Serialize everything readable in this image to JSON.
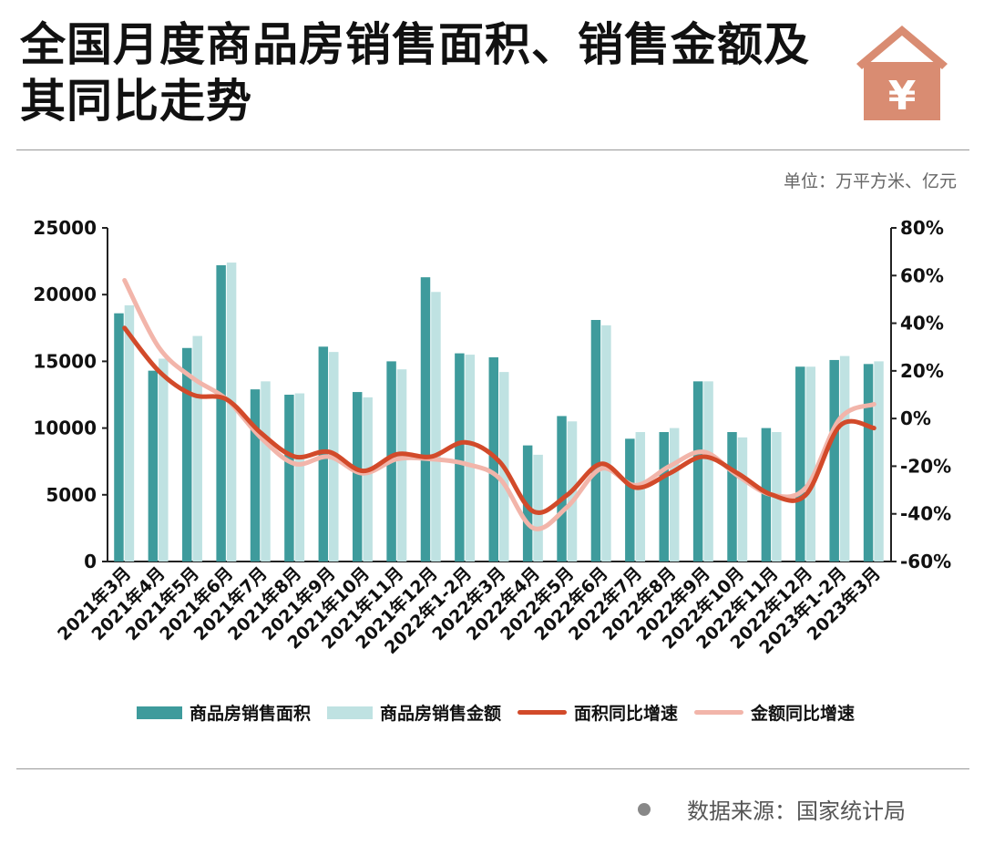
{
  "title": "全国月度商品房销售面积、销售金额及其同比走势",
  "unit_label": "单位：万平方米、亿元",
  "source_label": "数据来源：国家统计局",
  "house_icon_symbol": "¥",
  "colors": {
    "area_bar": "#3e9b9c",
    "amount_bar": "#bfe2e2",
    "area_yoy": "#d24a2a",
    "amount_yoy": "#f2b5aa",
    "house": "#d98c72"
  },
  "chart_data": {
    "type": "bar",
    "categories": [
      "2021年3月",
      "2021年4月",
      "2021年5月",
      "2021年6月",
      "2021年7月",
      "2021年8月",
      "2021年9月",
      "2021年10月",
      "2021年11月",
      "2021年12月",
      "2022年1-2月",
      "2022年3月",
      "2022年4月",
      "2022年5月",
      "2022年6月",
      "2022年7月",
      "2022年8月",
      "2022年9月",
      "2022年10月",
      "2022年11月",
      "2022年12月",
      "2023年1-2月",
      "2023年3月"
    ],
    "y_left": {
      "min": 0,
      "max": 25000,
      "ticks": [
        "0",
        "5000",
        "10000",
        "15000",
        "20000",
        "25000"
      ]
    },
    "y_right": {
      "min": -60,
      "max": 80,
      "ticks": [
        "-60%",
        "-40%",
        "-20%",
        "0%",
        "20%",
        "40%",
        "60%",
        "80%"
      ]
    },
    "series": [
      {
        "name": "商品房销售面积",
        "kind": "bar",
        "axis": "left",
        "values": [
          18600,
          14300,
          16000,
          22200,
          12900,
          12500,
          16100,
          12700,
          15000,
          21300,
          15600,
          15300,
          8700,
          10900,
          18100,
          9200,
          9700,
          13500,
          9700,
          10000,
          14600,
          15100,
          14800
        ]
      },
      {
        "name": "商品房销售金额",
        "kind": "bar",
        "axis": "left",
        "values": [
          19200,
          15200,
          16900,
          22400,
          13500,
          12600,
          15700,
          12300,
          14400,
          20200,
          15500,
          14200,
          8000,
          10500,
          17700,
          9700,
          10000,
          13500,
          9300,
          9700,
          14600,
          15400,
          15000
        ]
      },
      {
        "name": "面积同比增速",
        "kind": "line",
        "axis": "right",
        "values": [
          38,
          20,
          10,
          8,
          -6,
          -16,
          -14,
          -22,
          -15,
          -16,
          -10,
          -18,
          -39,
          -32,
          -19,
          -29,
          -23,
          -16,
          -23,
          -32,
          -32,
          -3,
          -4
        ]
      },
      {
        "name": "金额同比增速",
        "kind": "line",
        "axis": "right",
        "values": [
          58,
          30,
          17,
          8,
          -8,
          -19,
          -16,
          -23,
          -17,
          -17,
          -19,
          -25,
          -46,
          -37,
          -21,
          -28,
          -20,
          -14,
          -24,
          -32,
          -29,
          0,
          6
        ]
      }
    ],
    "legend": [
      "商品房销售面积",
      "商品房销售金额",
      "面积同比增速",
      "金额同比增速"
    ],
    "legend_position": "bottom",
    "grid": false
  }
}
